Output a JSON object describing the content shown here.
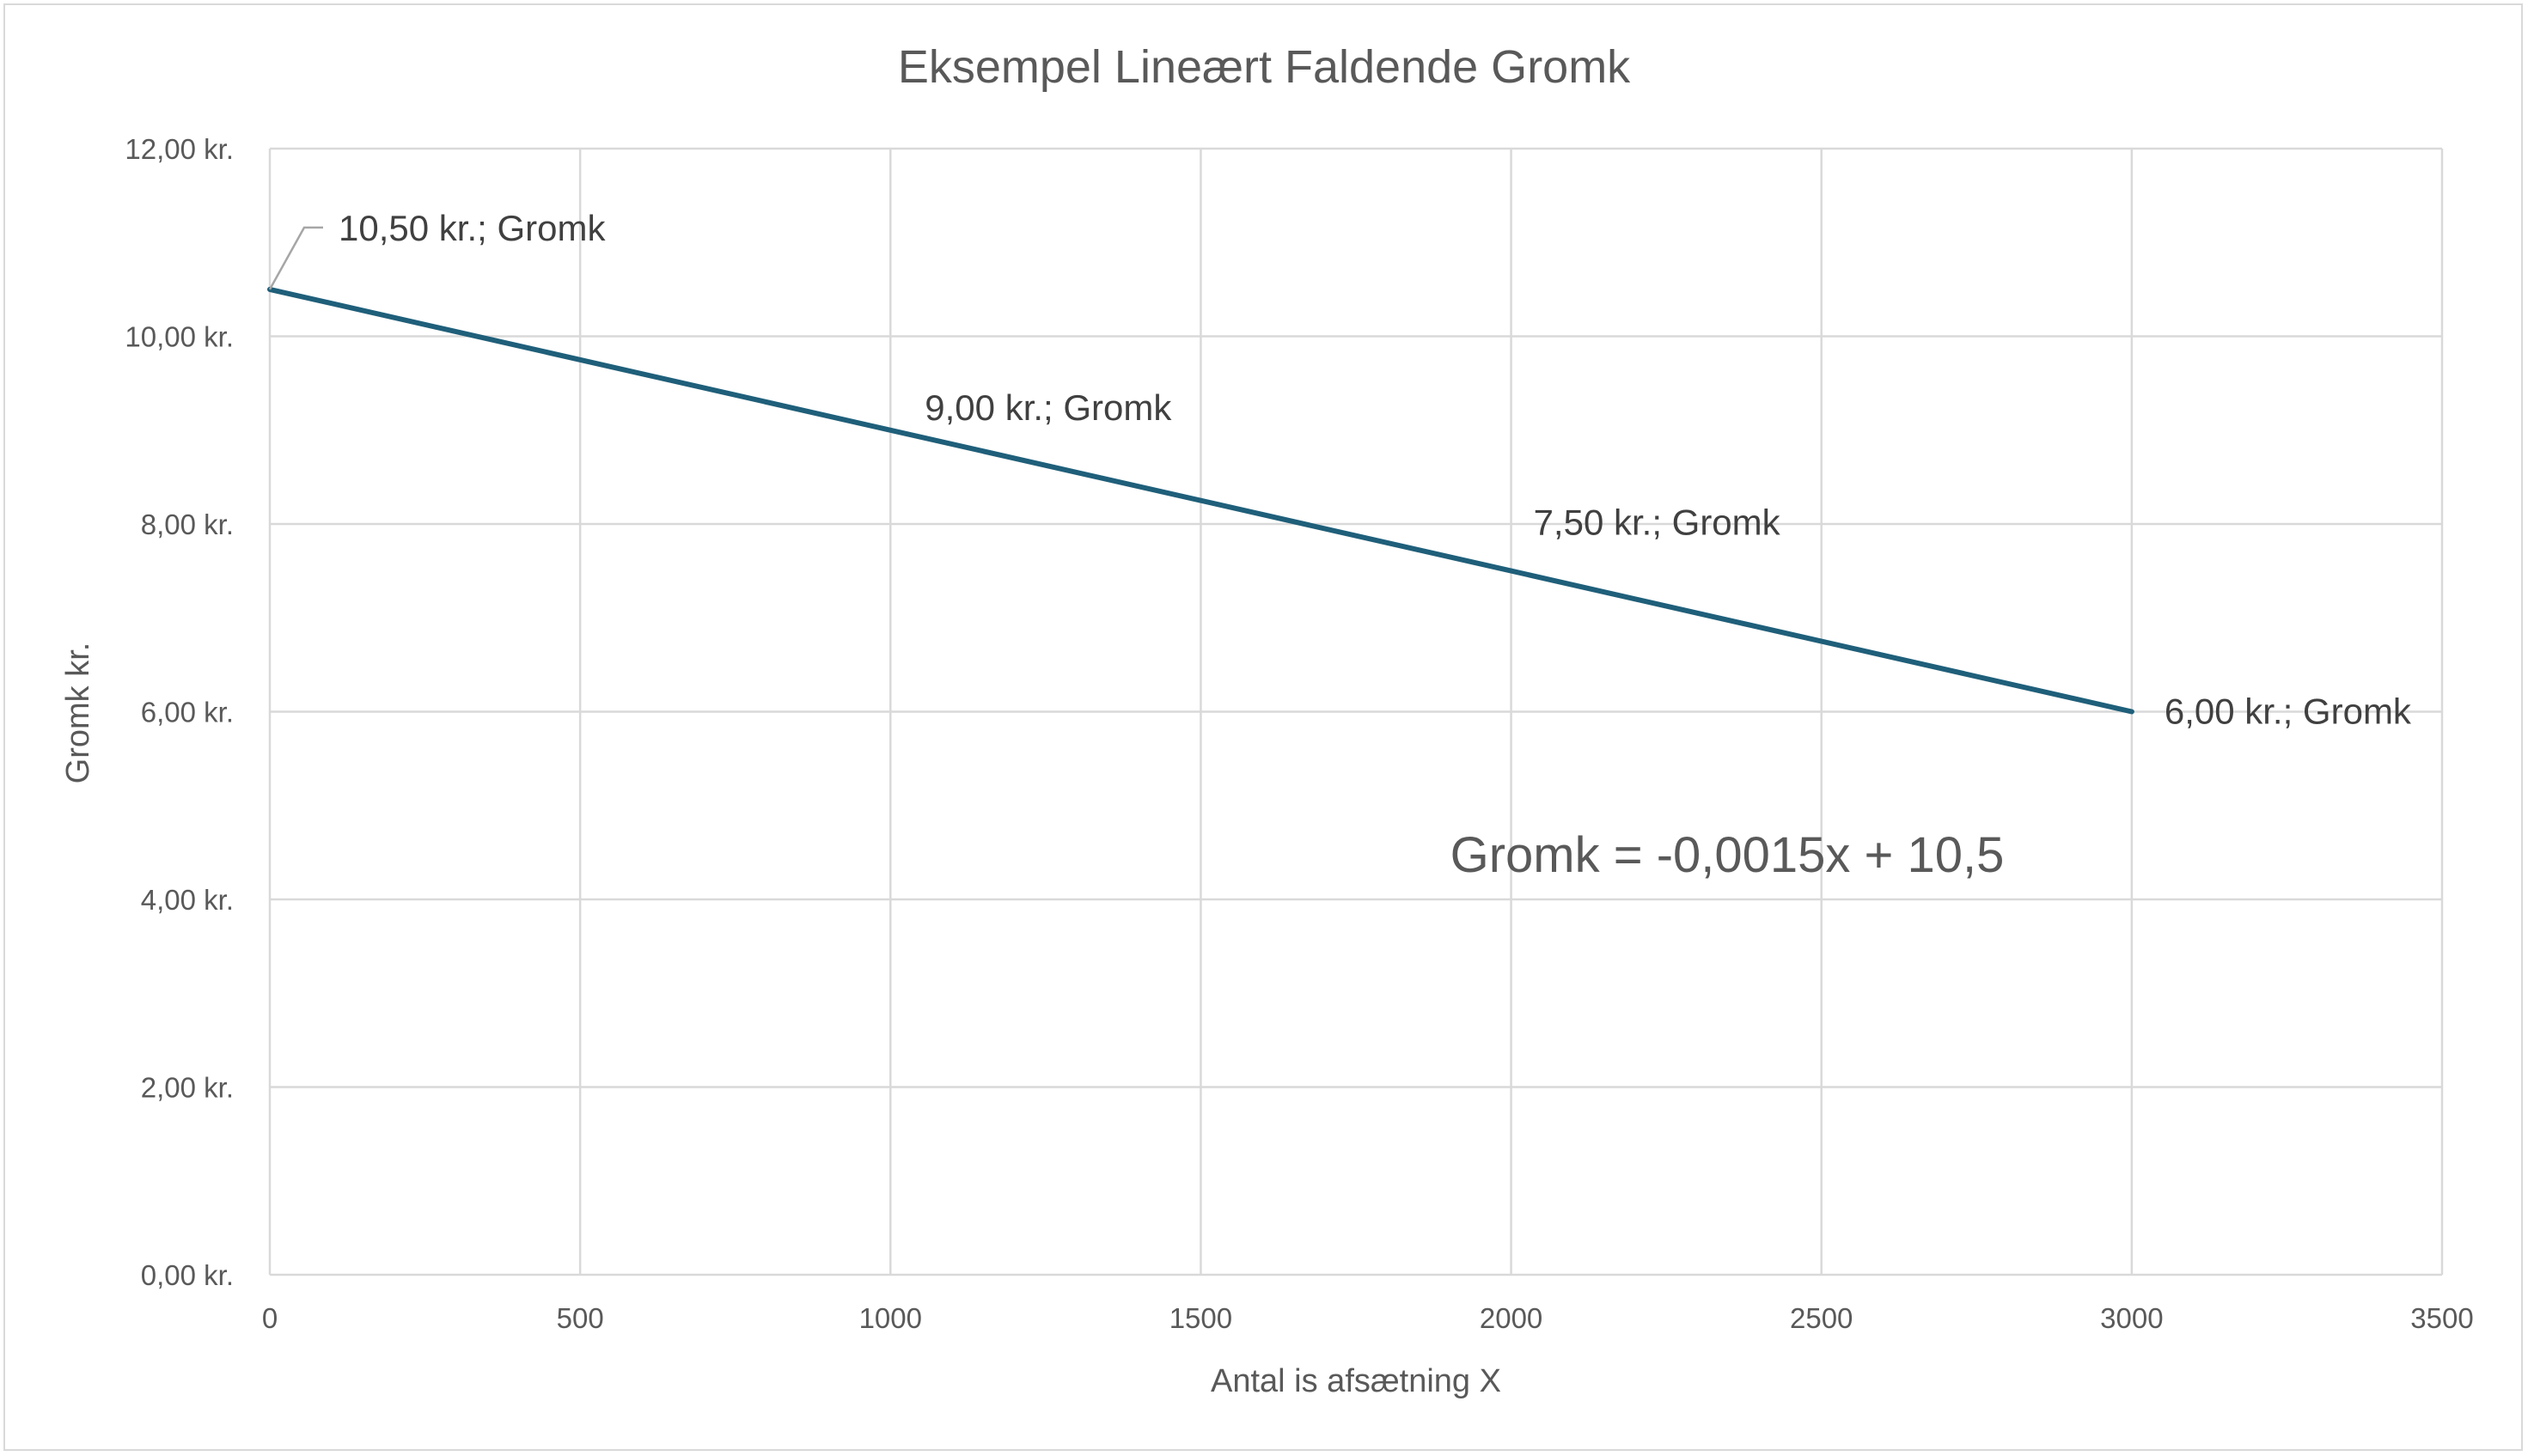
{
  "chart_data": {
    "type": "line",
    "title": "Eksempel Lineært Faldende Gromk",
    "xlabel": "Antal is afsætning X",
    "ylabel": "Gromk kr.",
    "xlim": [
      0,
      3500
    ],
    "ylim": [
      0,
      12
    ],
    "x_ticks": [
      0,
      500,
      1000,
      1500,
      2000,
      2500,
      3000,
      3500
    ],
    "x_tick_labels": [
      "0",
      "500",
      "1000",
      "1500",
      "2000",
      "2500",
      "3000",
      "3500"
    ],
    "y_ticks": [
      0,
      2,
      4,
      6,
      8,
      10,
      12
    ],
    "y_tick_labels": [
      "0,00 kr.",
      "2,00 kr.",
      "4,00 kr.",
      "6,00 kr.",
      "8,00 kr.",
      "10,00 kr.",
      "12,00 kr."
    ],
    "grid": true,
    "series": [
      {
        "name": "Gromk",
        "color": "#1f5f7a",
        "x": [
          0,
          1000,
          2000,
          3000
        ],
        "y": [
          10.5,
          9.0,
          7.5,
          6.0
        ],
        "data_labels": [
          "10,50 kr.; Gromk",
          "9,00 kr.; Gromk",
          "7,50 kr.; Gromk",
          "6,00 kr.; Gromk"
        ]
      }
    ],
    "annotation": "Gromk = -0,0015x + 10,5"
  }
}
